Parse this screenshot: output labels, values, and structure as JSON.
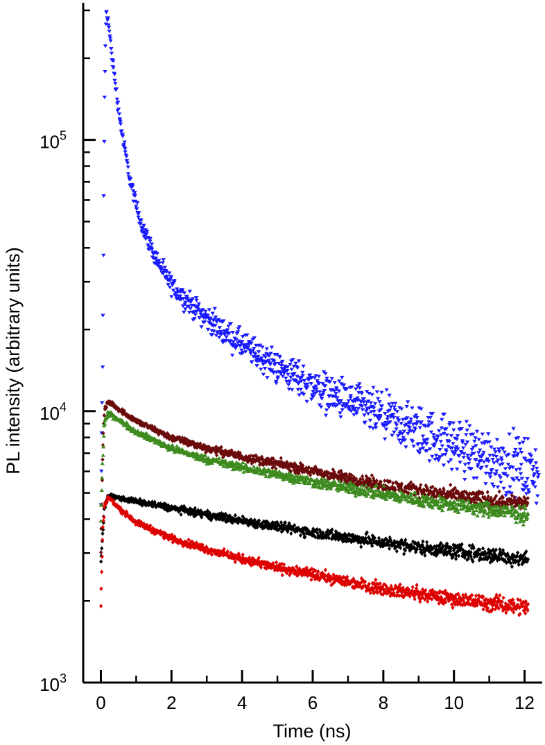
{
  "chart_data": {
    "type": "scatter",
    "xlabel": "Time (ns)",
    "ylabel": "PL intensity (arbitrary units)",
    "xlim": [
      -0.5,
      12.5
    ],
    "ylim": [
      1000,
      320000
    ],
    "y_scale": "log",
    "grid": false,
    "legend": "none",
    "x_ticks": [
      {
        "value": 0,
        "label": "0"
      },
      {
        "value": 2,
        "label": "2"
      },
      {
        "value": 4,
        "label": "4"
      },
      {
        "value": 6,
        "label": "6"
      },
      {
        "value": 8,
        "label": "8"
      },
      {
        "value": 10,
        "label": "10"
      },
      {
        "value": 12,
        "label": "12"
      }
    ],
    "y_ticks": [
      {
        "value": 1000,
        "base": "10",
        "exp": "3"
      },
      {
        "value": 10000,
        "base": "10",
        "exp": "4"
      },
      {
        "value": 100000,
        "base": "10",
        "exp": "5"
      }
    ],
    "series": [
      {
        "color": "#1a1aff",
        "marker": "triangle-down",
        "x_end": 12.4,
        "points": [
          [
            0.0,
            4500
          ],
          [
            0.05,
            15000
          ],
          [
            0.1,
            120000
          ],
          [
            0.15,
            300000
          ],
          [
            0.2,
            280000
          ],
          [
            0.3,
            210000
          ],
          [
            0.4,
            165000
          ],
          [
            0.5,
            130000
          ],
          [
            0.6,
            105000
          ],
          [
            0.8,
            74000
          ],
          [
            1.0,
            57000
          ],
          [
            1.2,
            47000
          ],
          [
            1.5,
            38000
          ],
          [
            1.8,
            32000
          ],
          [
            2.0,
            29000
          ],
          [
            2.5,
            25000
          ],
          [
            3.0,
            22000
          ],
          [
            3.5,
            19500
          ],
          [
            4.0,
            17500
          ],
          [
            5.0,
            14500
          ],
          [
            6.0,
            12400
          ],
          [
            7.0,
            10800
          ],
          [
            8.0,
            9500
          ],
          [
            9.0,
            8400
          ],
          [
            10.0,
            7500
          ],
          [
            11.0,
            6700
          ],
          [
            12.0,
            6100
          ],
          [
            12.4,
            5900
          ]
        ]
      },
      {
        "color": "#6b0a0a",
        "marker": "diamond",
        "x_end": 12.1,
        "points": [
          [
            0.0,
            3000
          ],
          [
            0.05,
            7000
          ],
          [
            0.1,
            10000
          ],
          [
            0.2,
            10800
          ],
          [
            0.3,
            10700
          ],
          [
            0.5,
            10200
          ],
          [
            1.0,
            9200
          ],
          [
            2.0,
            8000
          ],
          [
            3.0,
            7300
          ],
          [
            4.0,
            6800
          ],
          [
            5.0,
            6400
          ],
          [
            6.0,
            6000
          ],
          [
            7.0,
            5650
          ],
          [
            8.0,
            5350
          ],
          [
            9.0,
            5100
          ],
          [
            10.0,
            4900
          ],
          [
            11.0,
            4700
          ],
          [
            12.1,
            4550
          ]
        ]
      },
      {
        "color": "#3d8a1e",
        "marker": "triangle-up",
        "x_end": 12.1,
        "points": [
          [
            0.0,
            4000
          ],
          [
            0.05,
            6500
          ],
          [
            0.1,
            9000
          ],
          [
            0.2,
            9800
          ],
          [
            0.3,
            9700
          ],
          [
            0.5,
            9300
          ],
          [
            1.0,
            8400
          ],
          [
            2.0,
            7300
          ],
          [
            3.0,
            6650
          ],
          [
            4.0,
            6200
          ],
          [
            5.0,
            5850
          ],
          [
            6.0,
            5500
          ],
          [
            7.0,
            5200
          ],
          [
            8.0,
            4950
          ],
          [
            9.0,
            4720
          ],
          [
            10.0,
            4500
          ],
          [
            11.0,
            4330
          ],
          [
            12.1,
            4150
          ]
        ]
      },
      {
        "color": "#000000",
        "marker": "diamond",
        "x_end": 12.1,
        "points": [
          [
            0.0,
            2800
          ],
          [
            0.1,
            4400
          ],
          [
            0.2,
            4850
          ],
          [
            0.5,
            4800
          ],
          [
            1.0,
            4650
          ],
          [
            2.0,
            4400
          ],
          [
            3.0,
            4150
          ],
          [
            4.0,
            3950
          ],
          [
            5.0,
            3750
          ],
          [
            6.0,
            3580
          ],
          [
            7.0,
            3420
          ],
          [
            8.0,
            3280
          ],
          [
            9.0,
            3150
          ],
          [
            10.0,
            3050
          ],
          [
            11.0,
            2950
          ],
          [
            12.1,
            2850
          ]
        ]
      },
      {
        "color": "#dd0000",
        "marker": "diamond",
        "x_end": 12.1,
        "points": [
          [
            0.0,
            1900
          ],
          [
            0.05,
            3500
          ],
          [
            0.1,
            4500
          ],
          [
            0.2,
            4800
          ],
          [
            0.3,
            4700
          ],
          [
            0.5,
            4400
          ],
          [
            1.0,
            3900
          ],
          [
            2.0,
            3400
          ],
          [
            3.0,
            3100
          ],
          [
            4.0,
            2850
          ],
          [
            5.0,
            2650
          ],
          [
            6.0,
            2500
          ],
          [
            7.0,
            2350
          ],
          [
            8.0,
            2220
          ],
          [
            9.0,
            2120
          ],
          [
            10.0,
            2030
          ],
          [
            11.0,
            1960
          ],
          [
            12.1,
            1900
          ]
        ]
      }
    ]
  }
}
